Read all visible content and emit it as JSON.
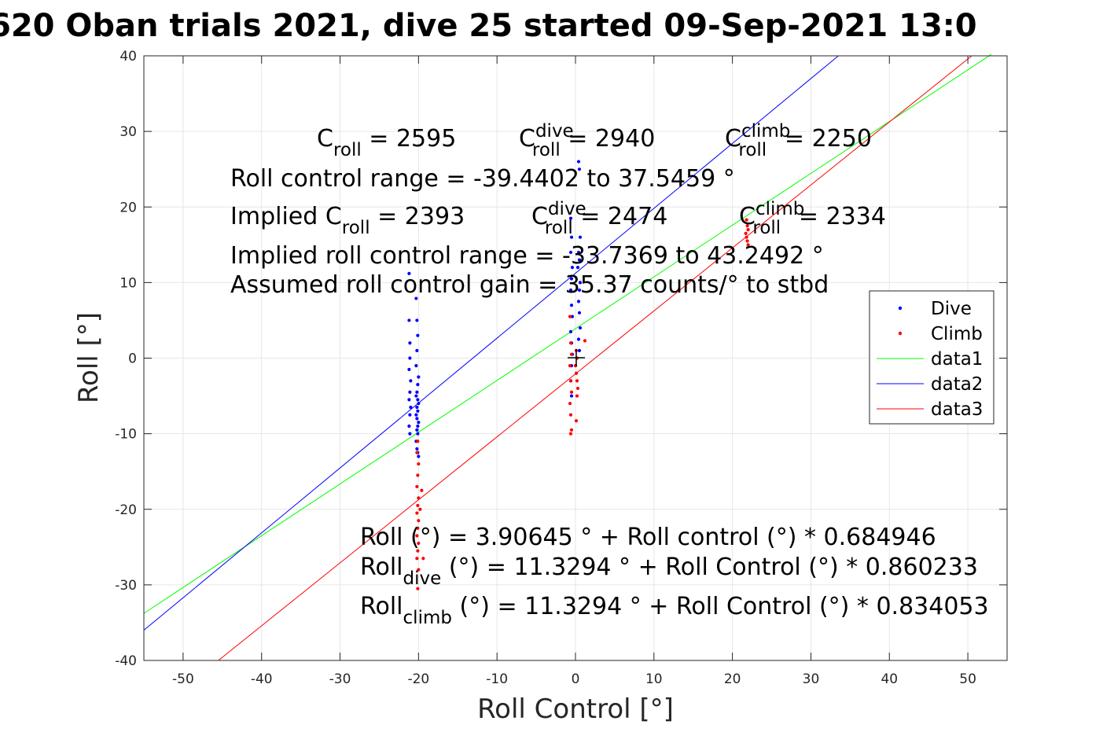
{
  "chart_data": {
    "type": "scatter",
    "title": "620 Oban trials 2021, dive 25 started 09-Sep-2021 13:0",
    "xlabel": "Roll Control [°]",
    "ylabel": "Roll [°]",
    "xlim": [
      -55,
      55
    ],
    "ylim": [
      -40,
      40
    ],
    "xticks": [
      -50,
      -40,
      -30,
      -20,
      -10,
      0,
      10,
      20,
      30,
      40,
      50
    ],
    "yticks": [
      -40,
      -30,
      -20,
      -10,
      0,
      10,
      20,
      30,
      40
    ],
    "grid": true,
    "legend_position": "right",
    "series": [
      {
        "name": "Dive",
        "kind": "points",
        "color": "#0000ff",
        "x": [
          -21.2,
          -21.2,
          -21.1,
          -21.1,
          -21.2,
          -21.0,
          -21.1,
          -21.2,
          -21.0,
          -21.1,
          -21.2,
          -21.1,
          -20.3,
          -20.2,
          -20.1,
          -20.2,
          -20.3,
          -20.0,
          -20.1,
          -20.2,
          -20.3,
          -20.1,
          -20.0,
          -20.2,
          -20.1,
          -20.3,
          -20.2,
          -20.0,
          -20.1,
          -20.2,
          -20.1,
          -20.3,
          -20.2,
          -20.1,
          -20.0,
          -20.2,
          -0.6,
          -0.5,
          -0.6,
          -0.4,
          -0.5,
          -0.6,
          -0.5,
          -0.4,
          -0.6,
          -0.5,
          -0.4,
          -0.5,
          -0.6,
          -0.5,
          0.4,
          0.5,
          0.6,
          0.4,
          0.5,
          0.3,
          0.6,
          0.5,
          0.4,
          0.5,
          0.6,
          0.4,
          0.5
        ],
        "y": [
          11.2,
          5.0,
          2.0,
          0.0,
          -1.5,
          -3.0,
          -4.5,
          -5.5,
          -6.5,
          -7.5,
          -9.0,
          -10.0,
          7.9,
          5.0,
          3.0,
          1.0,
          -1.0,
          -2.5,
          -3.5,
          -4.5,
          -5.0,
          -5.5,
          -6.0,
          -6.5,
          -7.0,
          -7.5,
          -8.0,
          -8.5,
          -9.0,
          -9.5,
          -10.0,
          -11.0,
          -12.0,
          -12.5,
          -13.0,
          -9.5,
          18.5,
          16.0,
          14.0,
          12.0,
          10.5,
          9.0,
          7.0,
          5.5,
          3.5,
          2.0,
          0.5,
          -1.0,
          -3.0,
          -5.0,
          26.0,
          25.0,
          16.0,
          14.0,
          13.0,
          12.0,
          10.0,
          9.0,
          7.5,
          6.0,
          4.0,
          2.5,
          1.0
        ]
      },
      {
        "name": "Climb",
        "kind": "points",
        "color": "#ff0000",
        "x": [
          -20.1,
          -20.2,
          -20.0,
          -20.1,
          -20.2,
          -20.0,
          -20.1,
          -20.2,
          -20.0,
          -20.1,
          -20.2,
          -20.0,
          -20.1,
          -20.2,
          -20.0,
          -20.1,
          -19.6,
          -19.4,
          -19.8,
          -0.7,
          -0.6,
          -0.5,
          -0.7,
          -0.6,
          -0.5,
          -0.7,
          -0.6,
          -0.5,
          -0.6,
          0.1,
          0.2,
          0.0,
          0.1,
          0.2,
          0.3,
          0.2,
          0.1,
          1.2,
          21.8,
          21.9,
          22.0,
          21.7,
          21.8,
          21.9,
          22.0
        ],
        "y": [
          -11.0,
          -12.5,
          -14.0,
          -15.5,
          -17.0,
          -18.5,
          -19.5,
          -20.5,
          -21.5,
          -22.5,
          -23.5,
          -24.5,
          -25.5,
          -26.5,
          -28.0,
          -30.5,
          -17.5,
          -26.5,
          -20.0,
          5.5,
          2.0,
          0.5,
          -1.0,
          -3.0,
          -4.5,
          -6.0,
          -7.5,
          -9.5,
          -10.0,
          1.0,
          0.0,
          -1.0,
          -2.0,
          -3.0,
          -4.0,
          -5.0,
          -8.3,
          2.3,
          18.3,
          17.5,
          17.0,
          16.5,
          16.0,
          15.5,
          15.0
        ]
      },
      {
        "name": "data1",
        "kind": "line",
        "color": "#00ff00",
        "x": [
          -55,
          53
        ],
        "y": [
          -33.77,
          40.2
        ]
      },
      {
        "name": "data2",
        "kind": "line",
        "color": "#0000ff",
        "x": [
          -55,
          33.5
        ],
        "y": [
          -36.0,
          40.0
        ]
      },
      {
        "name": "data3",
        "kind": "line",
        "color": "#ff0000",
        "x": [
          -45.5,
          50.5
        ],
        "y": [
          -40.0,
          40.0
        ]
      }
    ],
    "annotations": [
      {
        "text": "C",
        "sub": "roll",
        "rest": " = 2595"
      },
      {
        "text": "C",
        "sup": "dive",
        "sub": "roll",
        "rest": " = 2940"
      },
      {
        "text": "C",
        "sup": "climb",
        "sub": "roll",
        "rest": " = 2250"
      },
      {
        "text": "Roll control range = -39.4402 to 37.5459 °"
      },
      {
        "text": "Implied C",
        "sub": "roll",
        "rest": " = 2393"
      },
      {
        "text": "C",
        "sup": "dive",
        "sub": "roll",
        "rest": " = 2474"
      },
      {
        "text": "C",
        "sup": "climb",
        "sub": "roll",
        "rest": " = 2334"
      },
      {
        "text": "Implied roll control range = -33.7369 to 43.2492 °"
      },
      {
        "text": "Assumed roll control gain = 35.37 counts/° to stbd"
      },
      {
        "text": "Roll (°) = 3.90645 ° + Roll control (°) * 0.684946"
      },
      {
        "text": "Roll",
        "sub": "dive",
        "rest": " (°) = 11.3294 ° + Roll Control (°) * 0.860233"
      },
      {
        "text": "Roll",
        "sub": "climb",
        "rest": " (°) = 11.3294 ° + Roll Control (°) * 0.834053"
      }
    ]
  }
}
